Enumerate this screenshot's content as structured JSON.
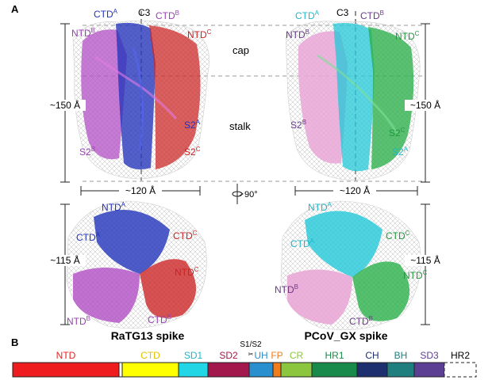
{
  "panel_a_letter": "A",
  "panel_b_letter": "B",
  "axis": {
    "c3": "C3",
    "rotation": "90°"
  },
  "regions": {
    "cap": "cap",
    "stalk": "stalk"
  },
  "dims": {
    "height_150": "~150 Å",
    "width_120": "~120 Å",
    "height_115": "~115 Å"
  },
  "ratg13": {
    "title": "RaTG13 spike",
    "side": [
      {
        "base": "CTD",
        "sup": "A",
        "color": "#2233bb"
      },
      {
        "base": "CTD",
        "sup": "B",
        "color": "#9b3fb5"
      },
      {
        "base": "NTD",
        "sup": "B",
        "color": "#9b3fb5"
      },
      {
        "base": "NTD",
        "sup": "C",
        "color": "#cc2222"
      },
      {
        "base": "S2",
        "sup": "A",
        "color": "#2233bb"
      },
      {
        "base": "S2",
        "sup": "B",
        "color": "#9b3fb5"
      },
      {
        "base": "S2",
        "sup": "C",
        "color": "#cc2222"
      }
    ],
    "top": [
      {
        "base": "NTD",
        "sup": "A",
        "color": "#2233bb"
      },
      {
        "base": "CTD",
        "sup": "A",
        "color": "#2233bb"
      },
      {
        "base": "CTD",
        "sup": "C",
        "color": "#cc2222"
      },
      {
        "base": "NTD",
        "sup": "C",
        "color": "#cc2222"
      },
      {
        "base": "NTD",
        "sup": "B",
        "color": "#9b3fb5"
      },
      {
        "base": "CTD",
        "sup": "B",
        "color": "#9b3fb5"
      }
    ]
  },
  "pcov": {
    "title": "PCoV_GX spike",
    "side": [
      {
        "base": "CTD",
        "sup": "A",
        "color": "#22b5c8"
      },
      {
        "base": "CTD",
        "sup": "B",
        "color": "#6b3a8a"
      },
      {
        "base": "NTD",
        "sup": "B",
        "color": "#6b3a8a"
      },
      {
        "base": "NTD",
        "sup": "C",
        "color": "#1f9a3a"
      },
      {
        "base": "S2",
        "sup": "B",
        "color": "#6b3a8a"
      },
      {
        "base": "S2",
        "sup": "C",
        "color": "#1f9a3a"
      },
      {
        "base": "S2",
        "sup": "A",
        "color": "#22b5c8"
      }
    ],
    "top": [
      {
        "base": "NTD",
        "sup": "A",
        "color": "#22b5c8"
      },
      {
        "base": "CTD",
        "sup": "A",
        "color": "#22b5c8"
      },
      {
        "base": "CTD",
        "sup": "C",
        "color": "#1f9a3a"
      },
      {
        "base": "NTD",
        "sup": "C",
        "color": "#1f9a3a"
      },
      {
        "base": "NTD",
        "sup": "B",
        "color": "#6b3a8a"
      },
      {
        "base": "CTD",
        "sup": "B",
        "color": "#6b3a8a"
      }
    ]
  },
  "domain_bar": {
    "s1s2_label": "S1/S2",
    "domains": [
      {
        "name": "NTD",
        "color": "#ee1c1c",
        "label_color": "#ee1c1c",
        "dashed": false
      },
      {
        "name": "",
        "color": "#ffffff",
        "label_color": "#000000",
        "dashed": false
      },
      {
        "name": "CTD",
        "color": "#ffff00",
        "label_color": "#e0c000",
        "dashed": false
      },
      {
        "name": "SD1",
        "color": "#22d6e6",
        "label_color": "#22b5c8",
        "dashed": false
      },
      {
        "name": "SD2",
        "color": "#a3184c",
        "label_color": "#a3184c",
        "dashed": false
      },
      {
        "name": "UH",
        "color": "#2a8fcf",
        "label_color": "#2a8fcf",
        "dashed": false
      },
      {
        "name": "FP",
        "color": "#f07c1a",
        "label_color": "#f07c1a",
        "dashed": false
      },
      {
        "name": "CR",
        "color": "#8cc63f",
        "label_color": "#8cc63f",
        "dashed": false
      },
      {
        "name": "HR1",
        "color": "#1a8a4a",
        "label_color": "#1a8a4a",
        "dashed": false
      },
      {
        "name": "CH",
        "color": "#1d2f6e",
        "label_color": "#1d2f6e",
        "dashed": false
      },
      {
        "name": "BH",
        "color": "#1f7f7f",
        "label_color": "#1f7f7f",
        "dashed": false
      },
      {
        "name": "SD3",
        "color": "#5b3f92",
        "label_color": "#5b3f92",
        "dashed": false
      },
      {
        "name": "HR2",
        "color": "#ffffff",
        "label_color": "#000000",
        "dashed": true
      }
    ]
  }
}
